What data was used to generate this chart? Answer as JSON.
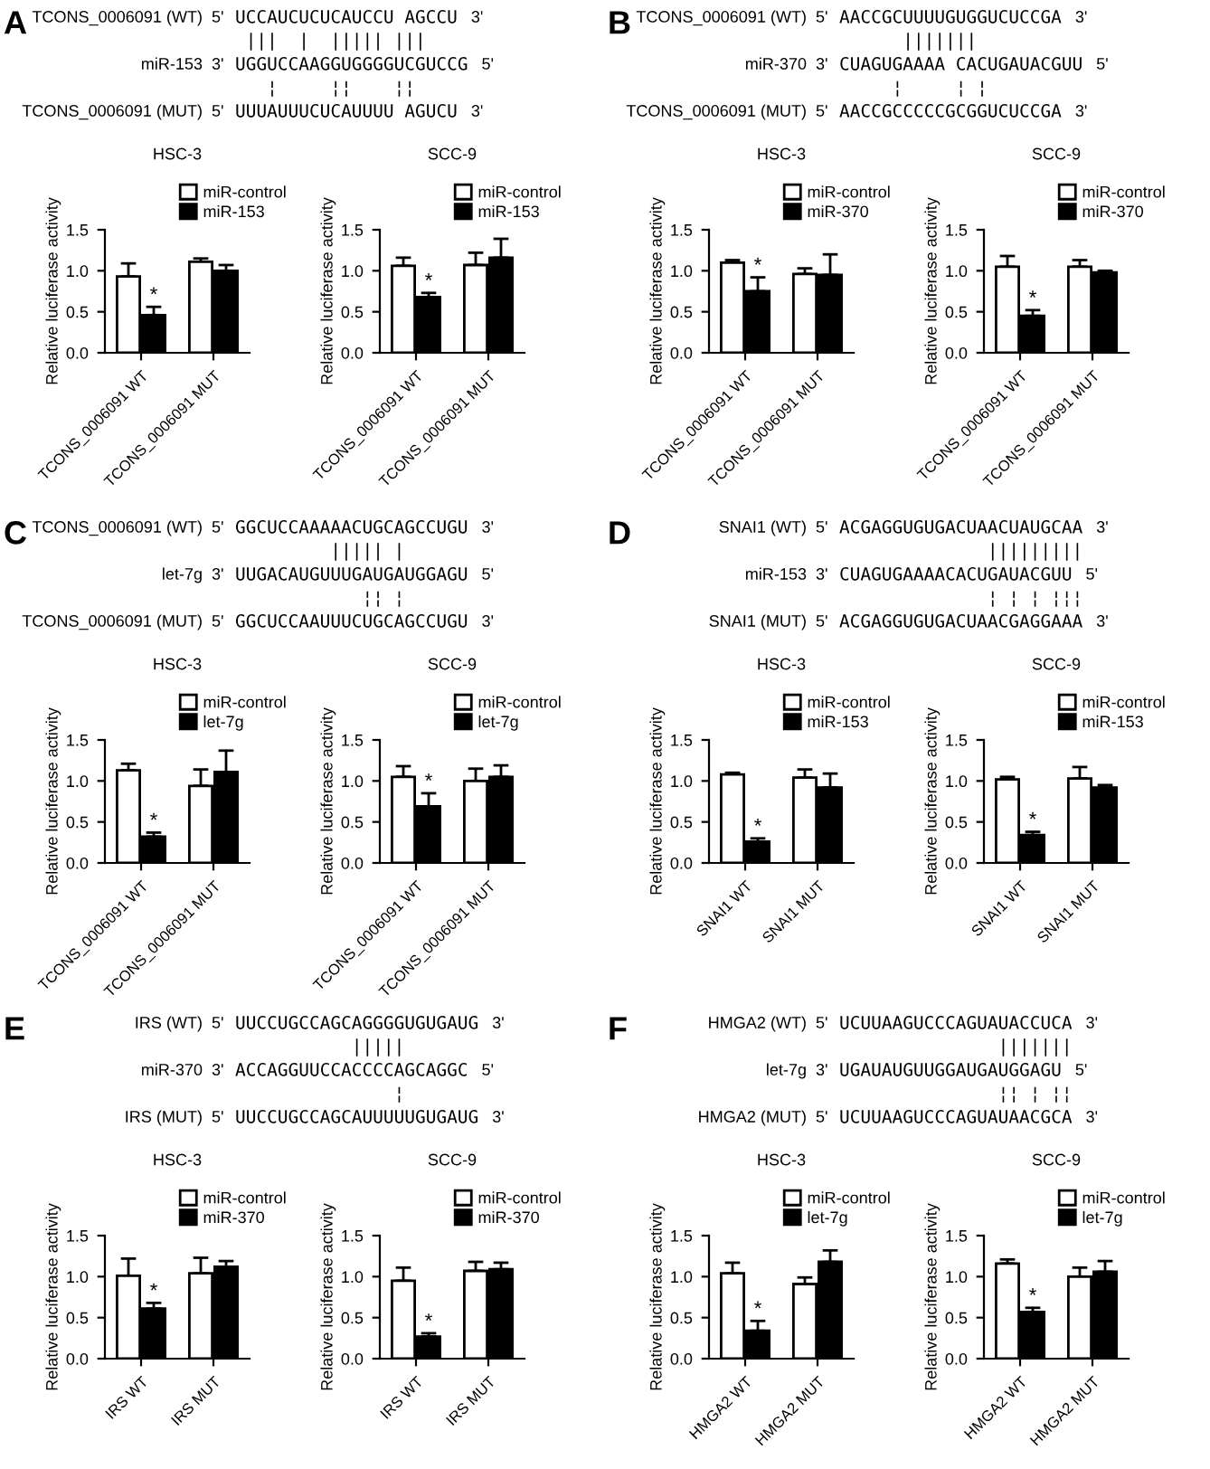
{
  "chart_data": [
    {
      "type": "other",
      "title": "A",
      "annotations": [
        "TCONS_0006091 (WT)",
        "5'",
        "UCCAUCUCUCAUCCU AGCCU",
        "3'",
        " |||  |  ||||| |||",
        "miR-153",
        "3'",
        "UGGUCCAAGGUGGGGUCGUCCG",
        "5'",
        "   ¦     ¦¦    ¦¦",
        "TCONS_0006091 (MUT)",
        "5'",
        "UUUAUUUCUCAUUUU AGUCU",
        "3'"
      ]
    },
    {
      "type": "bar",
      "title": "HSC-3",
      "ylabel": "Relative luciferase activity",
      "categories": [
        "TCONS_0006091 WT",
        "TCONS_0006091 MUT"
      ],
      "ylim": [
        0,
        1.5
      ],
      "yticks": [
        {
          "value": 0,
          "label": "0.0"
        },
        {
          "value": 0.5,
          "label": "0.5"
        },
        {
          "value": 1,
          "label": "1.0"
        },
        {
          "value": 1.5,
          "label": "1.5"
        }
      ],
      "legend": "top right",
      "annotations": [
        {
          "text": "*",
          "x": "TCONS_0006091 WT",
          "y": 0.56
        }
      ],
      "series": [
        {
          "name": "miR-control",
          "color": "#ffffff",
          "values": [
            0.93,
            1.11
          ],
          "errors": [
            [
              0.93,
              1.09
            ],
            [
              1.11,
              1.15
            ]
          ]
        },
        {
          "name": "miR-153",
          "color": "#000000",
          "values": [
            0.46,
            1.0
          ],
          "errors": [
            [
              0.46,
              0.56
            ],
            [
              1.0,
              1.07
            ]
          ]
        }
      ]
    },
    {
      "type": "bar",
      "title": "SCC-9",
      "ylabel": "Relative luciferase activity",
      "categories": [
        "TCONS_0006091 WT",
        "TCONS_0006091 MUT"
      ],
      "ylim": [
        0,
        1.5
      ],
      "yticks": [
        {
          "value": 0,
          "label": "0.0"
        },
        {
          "value": 0.5,
          "label": "0.5"
        },
        {
          "value": 1,
          "label": "1.0"
        },
        {
          "value": 1.5,
          "label": "1.5"
        }
      ],
      "legend": "top right",
      "annotations": [
        {
          "text": "*",
          "x": "TCONS_0006091 WT",
          "y": 0.73
        }
      ],
      "series": [
        {
          "name": "miR-control",
          "color": "#ffffff",
          "values": [
            1.06,
            1.07
          ],
          "errors": [
            [
              1.06,
              1.16
            ],
            [
              1.07,
              1.22
            ]
          ]
        },
        {
          "name": "miR-153",
          "color": "#000000",
          "values": [
            0.68,
            1.16
          ],
          "errors": [
            [
              0.68,
              0.73
            ],
            [
              1.16,
              1.39
            ]
          ]
        }
      ]
    },
    {
      "type": "other",
      "title": "B",
      "annotations": [
        "TCONS_0006091 (WT)",
        "5'",
        "AACCGCUUUUGUGGUCUCCGA",
        "3'",
        "      |||||||",
        "miR-370",
        "3'",
        "CUAGUGAAAA CACUGAUACGUU",
        "5'",
        "     ¦     ¦ ¦",
        "TCONS_0006091 (MUT)",
        "5'",
        "AACCGCCCCCGCGGUCUCCGA",
        "3'"
      ]
    },
    {
      "type": "bar",
      "title": "HSC-3",
      "ylabel": "Relative luciferase activity",
      "categories": [
        "TCONS_0006091 WT",
        "TCONS_0006091 MUT"
      ],
      "ylim": [
        0,
        1.5
      ],
      "yticks": [
        {
          "value": 0,
          "label": "0.0"
        },
        {
          "value": 0.5,
          "label": "0.5"
        },
        {
          "value": 1,
          "label": "1.0"
        },
        {
          "value": 1.5,
          "label": "1.5"
        }
      ],
      "legend": "top right",
      "annotations": [
        {
          "text": "*",
          "x": "TCONS_0006091 WT",
          "y": 0.92
        }
      ],
      "series": [
        {
          "name": "miR-control",
          "color": "#ffffff",
          "values": [
            1.1,
            0.96
          ],
          "errors": [
            [
              1.1,
              1.13
            ],
            [
              0.96,
              1.03
            ]
          ]
        },
        {
          "name": "miR-370",
          "color": "#000000",
          "values": [
            0.75,
            0.95
          ],
          "errors": [
            [
              0.75,
              0.92
            ],
            [
              0.95,
              1.2
            ]
          ]
        }
      ]
    },
    {
      "type": "bar",
      "title": "SCC-9",
      "ylabel": "Relative luciferase activity",
      "categories": [
        "TCONS_0006091 WT",
        "TCONS_0006091 MUT"
      ],
      "ylim": [
        0,
        1.5
      ],
      "yticks": [
        {
          "value": 0,
          "label": "0.0"
        },
        {
          "value": 0.5,
          "label": "0.5"
        },
        {
          "value": 1,
          "label": "1.0"
        },
        {
          "value": 1.5,
          "label": "1.5"
        }
      ],
      "legend": "top right",
      "annotations": [
        {
          "text": "*",
          "x": "TCONS_0006091 WT",
          "y": 0.52
        }
      ],
      "series": [
        {
          "name": "miR-control",
          "color": "#ffffff",
          "values": [
            1.05,
            1.05
          ],
          "errors": [
            [
              1.05,
              1.18
            ],
            [
              1.05,
              1.13
            ]
          ]
        },
        {
          "name": "miR-370",
          "color": "#000000",
          "values": [
            0.45,
            0.98
          ],
          "errors": [
            [
              0.45,
              0.52
            ],
            [
              0.98,
              1.0
            ]
          ]
        }
      ]
    },
    {
      "type": "other",
      "title": "C",
      "annotations": [
        "TCONS_0006091 (WT)",
        "5'",
        "GGCUCCAAAAACUGCAGCCUGU",
        "3'",
        "         ||||| |",
        "let-7g",
        "3'",
        "UUGACAUGUUUGAUGAUGGAGU",
        "5'",
        "            ¦¦ ¦",
        "TCONS_0006091 (MUT)",
        "5'",
        "GGCUCCAAUUUCUGCAGCCUGU",
        "3'"
      ]
    },
    {
      "type": "bar",
      "title": "HSC-3",
      "ylabel": "Relative luciferase activity",
      "categories": [
        "TCONS_0006091 WT",
        "TCONS_0006091 MUT"
      ],
      "ylim": [
        0,
        1.5
      ],
      "yticks": [
        {
          "value": 0,
          "label": "0.0"
        },
        {
          "value": 0.5,
          "label": "0.5"
        },
        {
          "value": 1,
          "label": "1.0"
        },
        {
          "value": 1.5,
          "label": "1.5"
        }
      ],
      "legend": "top right",
      "annotations": [
        {
          "text": "*",
          "x": "TCONS_0006091 WT",
          "y": 0.37
        }
      ],
      "series": [
        {
          "name": "miR-control",
          "color": "#ffffff",
          "values": [
            1.13,
            0.94
          ],
          "errors": [
            [
              1.13,
              1.21
            ],
            [
              0.94,
              1.14
            ]
          ]
        },
        {
          "name": "let-7g",
          "color": "#000000",
          "values": [
            0.32,
            1.11
          ],
          "errors": [
            [
              0.32,
              0.37
            ],
            [
              1.11,
              1.37
            ]
          ]
        }
      ]
    },
    {
      "type": "bar",
      "title": "SCC-9",
      "ylabel": "Relative luciferase activity",
      "categories": [
        "TCONS_0006091 WT",
        "TCONS_0006091 MUT"
      ],
      "ylim": [
        0,
        1.5
      ],
      "yticks": [
        {
          "value": 0,
          "label": "0.0"
        },
        {
          "value": 0.5,
          "label": "0.5"
        },
        {
          "value": 1,
          "label": "1.0"
        },
        {
          "value": 1.5,
          "label": "1.5"
        }
      ],
      "legend": "top right",
      "annotations": [
        {
          "text": "*",
          "x": "TCONS_0006091 WT",
          "y": 0.85
        }
      ],
      "series": [
        {
          "name": "miR-control",
          "color": "#ffffff",
          "values": [
            1.05,
            1.0
          ],
          "errors": [
            [
              1.05,
              1.18
            ],
            [
              1.0,
              1.15
            ]
          ]
        },
        {
          "name": "let-7g",
          "color": "#000000",
          "values": [
            0.69,
            1.05
          ],
          "errors": [
            [
              0.69,
              0.85
            ],
            [
              1.05,
              1.19
            ]
          ]
        }
      ]
    },
    {
      "type": "other",
      "title": "D",
      "annotations": [
        "SNAI1 (WT)",
        "5'",
        "ACGAGGUGUGACUAACUAUGCAA",
        "3'",
        "              |||||||||",
        "miR-153",
        "3'",
        "CUAGUGAAAACACUGAUACGUU",
        "5'",
        "              ¦ ¦ ¦ ¦¦¦",
        "SNAI1 (MUT)",
        "5'",
        "ACGAGGUGUGACUAACGAGGAAA",
        "3'"
      ]
    },
    {
      "type": "bar",
      "title": "HSC-3",
      "ylabel": "Relative luciferase activity",
      "categories": [
        "SNAI1 WT",
        "SNAI1 MUT"
      ],
      "ylim": [
        0,
        1.5
      ],
      "yticks": [
        {
          "value": 0,
          "label": "0.0"
        },
        {
          "value": 0.5,
          "label": "0.5"
        },
        {
          "value": 1,
          "label": "1.0"
        },
        {
          "value": 1.5,
          "label": "1.5"
        }
      ],
      "legend": "top right",
      "annotations": [
        {
          "text": "*",
          "x": "SNAI1 WT",
          "y": 0.3
        }
      ],
      "series": [
        {
          "name": "miR-control",
          "color": "#ffffff",
          "values": [
            1.08,
            1.04
          ],
          "errors": [
            [
              1.08,
              1.1
            ],
            [
              1.04,
              1.14
            ]
          ]
        },
        {
          "name": "miR-153",
          "color": "#000000",
          "values": [
            0.26,
            0.92
          ],
          "errors": [
            [
              0.26,
              0.3
            ],
            [
              0.92,
              1.09
            ]
          ]
        }
      ]
    },
    {
      "type": "bar",
      "title": "SCC-9",
      "ylabel": "Relative luciferase activity",
      "categories": [
        "SNAI1 WT",
        "SNAI1 MUT"
      ],
      "ylim": [
        0,
        1.5
      ],
      "yticks": [
        {
          "value": 0,
          "label": "0.0"
        },
        {
          "value": 0.5,
          "label": "0.5"
        },
        {
          "value": 1,
          "label": "1.0"
        },
        {
          "value": 1.5,
          "label": "1.5"
        }
      ],
      "legend": "top right",
      "annotations": [
        {
          "text": "*",
          "x": "SNAI1 WT",
          "y": 0.38
        }
      ],
      "series": [
        {
          "name": "miR-control",
          "color": "#ffffff",
          "values": [
            1.02,
            1.03
          ],
          "errors": [
            [
              1.02,
              1.05
            ],
            [
              1.03,
              1.17
            ]
          ]
        },
        {
          "name": "miR-153",
          "color": "#000000",
          "values": [
            0.34,
            0.92
          ],
          "errors": [
            [
              0.34,
              0.38
            ],
            [
              0.92,
              0.95
            ]
          ]
        }
      ]
    },
    {
      "type": "other",
      "title": "E",
      "annotations": [
        "IRS (WT)",
        "5'",
        "UUCCUGCCAGCAGGGGUGUGAUG",
        "3'",
        "           |||||",
        "miR-370",
        "3'",
        "ACCAGGUUCCACCCCAGCAGGC",
        "5'",
        "               ¦",
        "IRS (MUT)",
        "5'",
        "UUCCUGCCAGCAUUUUUGUGAUG",
        "3'"
      ]
    },
    {
      "type": "bar",
      "title": "HSC-3",
      "ylabel": "Relative luciferase activity",
      "categories": [
        "IRS WT",
        "IRS MUT"
      ],
      "ylim": [
        0,
        1.5
      ],
      "yticks": [
        {
          "value": 0,
          "label": "0.0"
        },
        {
          "value": 0.5,
          "label": "0.5"
        },
        {
          "value": 1,
          "label": "1.0"
        },
        {
          "value": 1.5,
          "label": "1.5"
        }
      ],
      "legend": "top right",
      "annotations": [
        {
          "text": "*",
          "x": "IRS WT",
          "y": 0.68
        }
      ],
      "series": [
        {
          "name": "miR-control",
          "color": "#ffffff",
          "values": [
            1.01,
            1.04
          ],
          "errors": [
            [
              1.01,
              1.22
            ],
            [
              1.04,
              1.23
            ]
          ]
        },
        {
          "name": "miR-370",
          "color": "#000000",
          "values": [
            0.61,
            1.12
          ],
          "errors": [
            [
              0.61,
              0.68
            ],
            [
              1.12,
              1.19
            ]
          ]
        }
      ]
    },
    {
      "type": "bar",
      "title": "SCC-9",
      "ylabel": "Relative luciferase activity",
      "categories": [
        "IRS WT",
        "IRS MUT"
      ],
      "ylim": [
        0,
        1.5
      ],
      "yticks": [
        {
          "value": 0,
          "label": "0.0"
        },
        {
          "value": 0.5,
          "label": "0.5"
        },
        {
          "value": 1,
          "label": "1.0"
        },
        {
          "value": 1.5,
          "label": "1.5"
        }
      ],
      "legend": "top right",
      "annotations": [
        {
          "text": "*",
          "x": "IRS WT",
          "y": 0.31
        }
      ],
      "series": [
        {
          "name": "miR-control",
          "color": "#ffffff",
          "values": [
            0.95,
            1.07
          ],
          "errors": [
            [
              0.95,
              1.11
            ],
            [
              1.07,
              1.18
            ]
          ]
        },
        {
          "name": "miR-370",
          "color": "#000000",
          "values": [
            0.27,
            1.09
          ],
          "errors": [
            [
              0.27,
              0.31
            ],
            [
              1.09,
              1.17
            ]
          ]
        }
      ]
    },
    {
      "type": "other",
      "title": "F",
      "annotations": [
        "HMGA2 (WT)",
        "5'",
        "UCUUAAGUCCCAGUAUACCUCA",
        "3'",
        "               |||||||",
        "let-7g",
        "3'",
        "UGAUAUGUUGGAUGAUGGAGU",
        "5'",
        "               ¦¦ ¦ ¦¦",
        "HMGA2 (MUT)",
        "5'",
        "UCUUAAGUCCCAGUAUAACGCA",
        "3'"
      ]
    },
    {
      "type": "bar",
      "title": "HSC-3",
      "ylabel": "Relative luciferase activity",
      "categories": [
        "HMGA2 WT",
        "HMGA2 MUT"
      ],
      "ylim": [
        0,
        1.5
      ],
      "yticks": [
        {
          "value": 0,
          "label": "0.0"
        },
        {
          "value": 0.5,
          "label": "0.5"
        },
        {
          "value": 1,
          "label": "1.0"
        },
        {
          "value": 1.5,
          "label": "1.5"
        }
      ],
      "legend": "top right",
      "annotations": [
        {
          "text": "*",
          "x": "HMGA2 WT",
          "y": 0.46
        }
      ],
      "series": [
        {
          "name": "miR-control",
          "color": "#ffffff",
          "values": [
            1.04,
            0.91
          ],
          "errors": [
            [
              1.04,
              1.17
            ],
            [
              0.91,
              0.99
            ]
          ]
        },
        {
          "name": "let-7g",
          "color": "#000000",
          "values": [
            0.34,
            1.18
          ],
          "errors": [
            [
              0.34,
              0.46
            ],
            [
              1.18,
              1.32
            ]
          ]
        }
      ]
    },
    {
      "type": "bar",
      "title": "SCC-9",
      "ylabel": "Relative luciferase activity",
      "categories": [
        "HMGA2 WT",
        "HMGA2 MUT"
      ],
      "ylim": [
        0,
        1.5
      ],
      "yticks": [
        {
          "value": 0,
          "label": "0.0"
        },
        {
          "value": 0.5,
          "label": "0.5"
        },
        {
          "value": 1,
          "label": "1.0"
        },
        {
          "value": 1.5,
          "label": "1.5"
        }
      ],
      "legend": "top right",
      "annotations": [
        {
          "text": "*",
          "x": "HMGA2 WT",
          "y": 0.62
        }
      ],
      "series": [
        {
          "name": "miR-control",
          "color": "#ffffff",
          "values": [
            1.16,
            1.0
          ],
          "errors": [
            [
              1.16,
              1.21
            ],
            [
              1.0,
              1.11
            ]
          ]
        },
        {
          "name": "let-7g",
          "color": "#000000",
          "values": [
            0.57,
            1.06
          ],
          "errors": [
            [
              0.57,
              0.62
            ],
            [
              1.06,
              1.19
            ]
          ]
        }
      ]
    }
  ]
}
